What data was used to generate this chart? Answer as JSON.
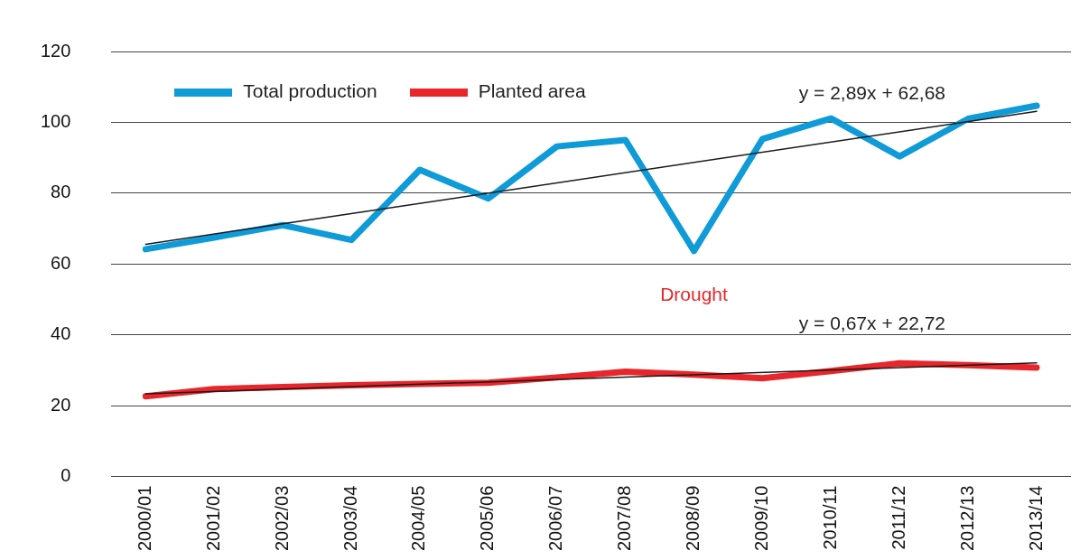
{
  "chart_data": {
    "type": "line",
    "categories": [
      "2000/01",
      "2001/02",
      "2002/03",
      "2003/04",
      "2004/05",
      "2005/06",
      "2006/07",
      "2007/08",
      "2008/09",
      "2009/10",
      "2010/11",
      "2011/12",
      "2012/13",
      "2013/14"
    ],
    "series": [
      {
        "name": "Total production",
        "color": "#0f9ad8",
        "values": [
          64.2,
          67.5,
          71,
          66.8,
          86.6,
          78.5,
          93.2,
          95,
          63.7,
          95.3,
          101.1,
          90.4,
          101,
          104.7
        ]
      },
      {
        "name": "Planted area",
        "color": "#e8262b",
        "values": [
          22.7,
          24.7,
          25.3,
          25.8,
          26.2,
          26.5,
          28,
          29.6,
          28.8,
          27.8,
          29.8,
          32,
          31.5,
          30.8
        ]
      },
      {
        "type": "line",
        "color": "#1a1a1a",
        "x": [
          "2000/01",
          "2013/14"
        ],
        "values": [
          65.6,
          103.1
        ]
      },
      {
        "type": "line",
        "color": "#1a1a1a",
        "x": [
          "2000/01",
          "2013/14"
        ],
        "values": [
          23.4,
          32.1
        ]
      }
    ],
    "annotations": [
      "Drought",
      "y = 2,89x + 62,68",
      "y = 0,67x + 22,72"
    ],
    "ylim": [
      0,
      120
    ],
    "yticks": [
      0,
      20,
      40,
      60,
      80,
      100,
      120
    ],
    "grid": "y",
    "legend": "top left",
    "marker": "none",
    "line_style": "solid"
  }
}
